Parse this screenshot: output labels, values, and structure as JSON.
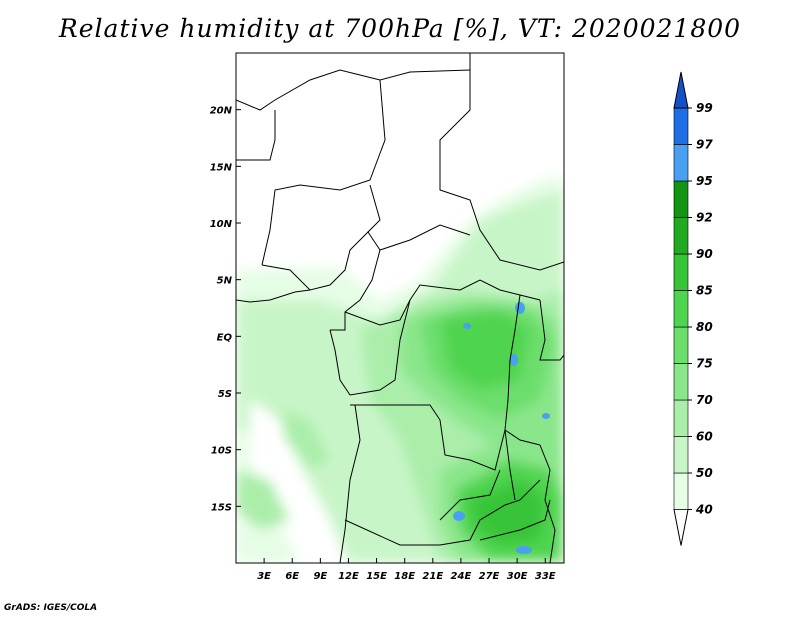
{
  "title": "Relative humidity at 700hPa [%], VT: 2020021800",
  "credit": "GrADS: IGES/COLA",
  "map": {
    "lon_range": [
      0,
      35
    ],
    "lat_range": [
      -20,
      25
    ],
    "x_ticks": [
      "3E",
      "6E",
      "9E",
      "12E",
      "15E",
      "18E",
      "21E",
      "24E",
      "27E",
      "30E",
      "33E"
    ],
    "y_ticks": [
      "20N",
      "15N",
      "10N",
      "5N",
      "EQ",
      "5S",
      "10S",
      "15S"
    ]
  },
  "colorbar": {
    "labels": [
      "40",
      "50",
      "60",
      "70",
      "75",
      "80",
      "85",
      "90",
      "92",
      "95",
      "97",
      "99"
    ],
    "colors": [
      "#ffffff",
      "#e6fde6",
      "#c8f5c8",
      "#aaeeaa",
      "#8ae68a",
      "#6cde6c",
      "#4fd44f",
      "#37c437",
      "#22ab22",
      "#139513",
      "#4aa0f0",
      "#1e6ee6",
      "#1450c8"
    ]
  }
}
